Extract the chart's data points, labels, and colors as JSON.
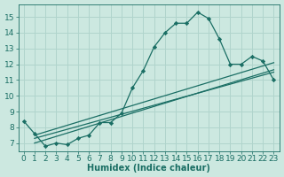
{
  "xlabel": "Humidex (Indice chaleur)",
  "bg_color": "#cce8e0",
  "grid_color": "#b0d4cc",
  "line_color": "#1a6e64",
  "xlim": [
    -0.5,
    23.5
  ],
  "ylim": [
    6.5,
    15.8
  ],
  "xticks": [
    0,
    1,
    2,
    3,
    4,
    5,
    6,
    7,
    8,
    9,
    10,
    11,
    12,
    13,
    14,
    15,
    16,
    17,
    18,
    19,
    20,
    21,
    22,
    23
  ],
  "yticks": [
    7,
    8,
    9,
    10,
    11,
    12,
    13,
    14,
    15
  ],
  "main_x": [
    0,
    1,
    2,
    3,
    4,
    5,
    6,
    7,
    8,
    9,
    10,
    11,
    12,
    13,
    14,
    15,
    16,
    17,
    18,
    19,
    20,
    21,
    22,
    23
  ],
  "main_y": [
    8.4,
    7.6,
    6.8,
    7.0,
    6.9,
    7.3,
    7.5,
    8.3,
    8.3,
    8.9,
    10.5,
    11.6,
    13.1,
    14.0,
    14.6,
    14.6,
    15.3,
    14.9,
    13.6,
    12.0,
    12.0,
    12.5,
    12.2,
    11.0
  ],
  "line2_x": [
    1,
    23
  ],
  "line2_y": [
    7.3,
    11.5
  ],
  "line3_x": [
    1,
    23
  ],
  "line3_y": [
    7.0,
    11.65
  ],
  "line4_x": [
    1,
    23
  ],
  "line4_y": [
    7.5,
    12.1
  ],
  "font_size_label": 7,
  "font_size_tick": 6.5
}
